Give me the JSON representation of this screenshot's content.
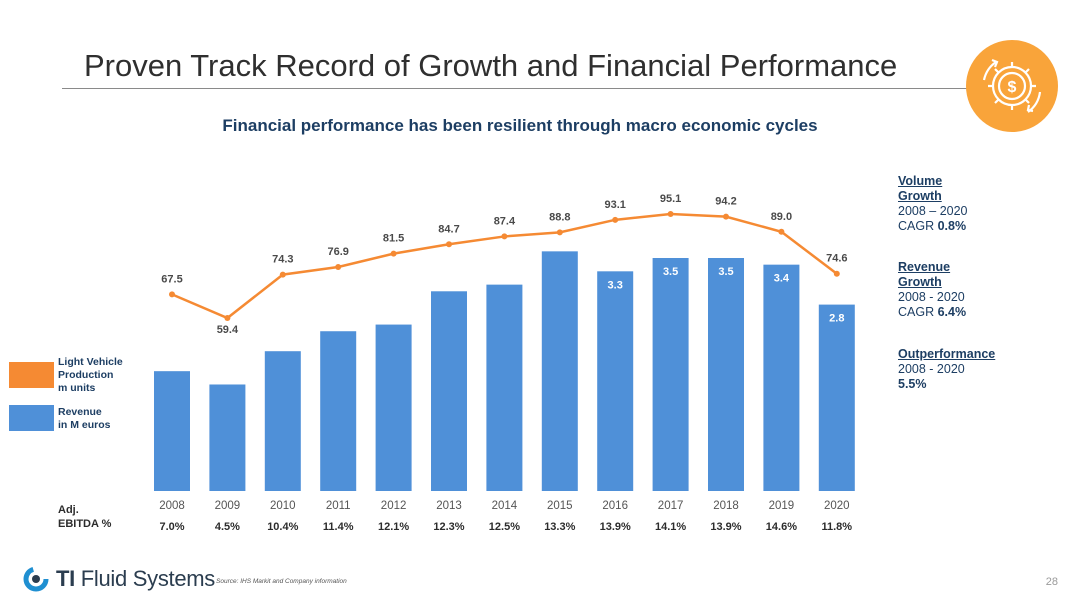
{
  "slide": {
    "title": "Proven Track Record of Growth and Financial Performance",
    "subtitle": "Financial performance has been resilient through macro economic cycles",
    "icon": "gear-dollar-icon",
    "accent_color": "#f9a43a",
    "page_number": "28",
    "source": "Source: IHS Markit and Company information",
    "logo": {
      "brand_bold": "TI",
      "brand_rest": " Fluid Systems",
      "icon": "logo-ring-icon"
    }
  },
  "legend": {
    "line_label": "Light Vehicle\nProduction\nm units",
    "bar_label": "Revenue\nin M euros",
    "line_color": "#f58a33",
    "bar_color": "#4f90d8"
  },
  "ebitda_label": "Adj.\nEBITDA %",
  "sidebar": {
    "volume": {
      "header": "Volume\nGrowth",
      "period": "2008 – 2020",
      "cagr_prefix": "CAGR ",
      "cagr_value": "0.8%"
    },
    "revenue": {
      "header": "Revenue\nGrowth",
      "period": "2008 - 2020",
      "cagr_prefix": "CAGR ",
      "cagr_value": "6.4%"
    },
    "outperformance": {
      "header": "Outperformance",
      "period": "2008 - 2020",
      "value": "5.5%"
    }
  },
  "chart_data": {
    "type": "bar",
    "categories": [
      "2008",
      "2009",
      "2010",
      "2011",
      "2012",
      "2013",
      "2014",
      "2015",
      "2016",
      "2017",
      "2018",
      "2019",
      "2020"
    ],
    "series": [
      {
        "name": "Revenue in M euros",
        "type": "bar",
        "values": [
          1.8,
          1.6,
          2.1,
          2.4,
          2.5,
          3.0,
          3.1,
          3.6,
          3.3,
          3.5,
          3.5,
          3.4,
          2.8
        ],
        "data_labels": [
          "",
          "",
          "",
          "",
          "",
          "",
          "",
          "",
          "3.3",
          "3.5",
          "3.5",
          "3.4",
          "2.8"
        ]
      },
      {
        "name": "Light Vehicle Production m units",
        "type": "line",
        "values": [
          67.5,
          59.4,
          74.3,
          76.9,
          81.5,
          84.7,
          87.4,
          88.8,
          93.1,
          95.1,
          94.2,
          89.0,
          74.6
        ],
        "data_labels": [
          "67.5",
          "59.4",
          "74.3",
          "76.9",
          "81.5",
          "84.7",
          "87.4",
          "88.8",
          "93.1",
          "95.1",
          "94.2",
          "89.0",
          "74.6"
        ]
      }
    ],
    "ebitda": [
      "7.0%",
      "4.5%",
      "10.4%",
      "11.4%",
      "12.1%",
      "12.3%",
      "12.5%",
      "13.3%",
      "13.9%",
      "14.1%",
      "13.9%",
      "14.6%",
      "11.8%"
    ],
    "bar_ylim": [
      0,
      4.5
    ],
    "line_ylim": [
      20,
      120
    ],
    "grid": false
  }
}
